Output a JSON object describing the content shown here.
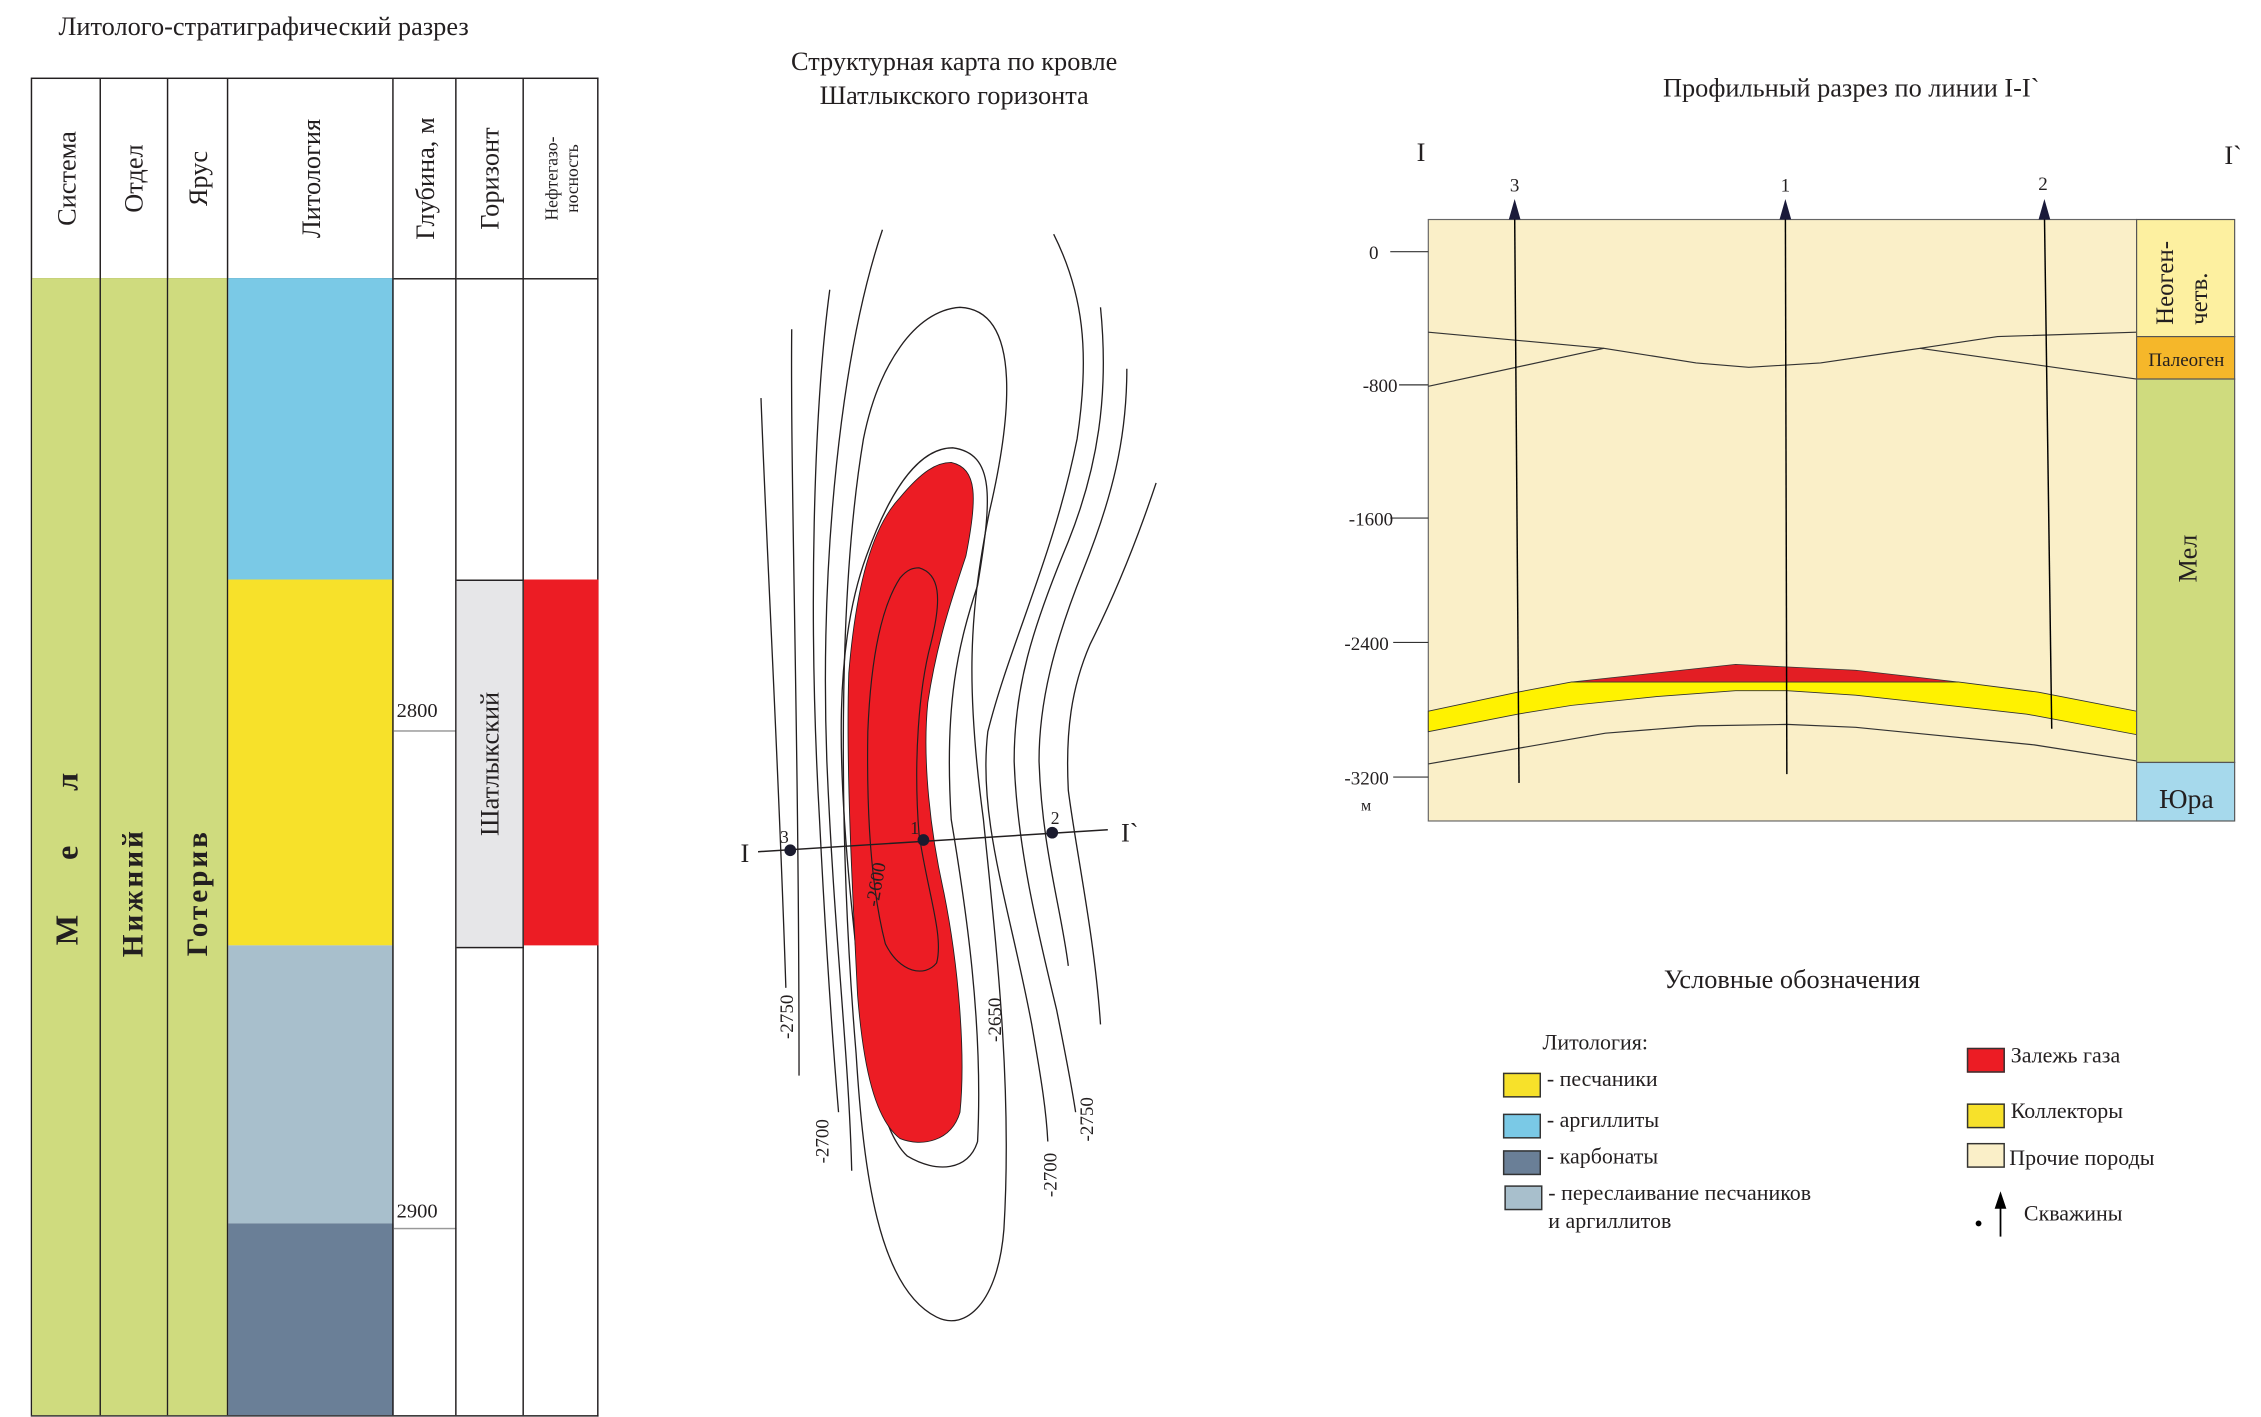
{
  "strat": {
    "title": "Литолого-стратиграфический разрез",
    "headers": [
      "Система",
      "Отдел",
      "Ярус",
      "Литология",
      "Глубина, м",
      "Горизонт",
      "Нефтегазо-",
      "носность"
    ],
    "system": "М е л",
    "series": "Нижний",
    "stage": "Готерив",
    "depths": [
      "2800",
      "2900"
    ],
    "horizon": "Шатлыкский",
    "colors": {
      "green": "#cfdb7e",
      "blue": "#7ac9e6",
      "yellow": "#f7e12a",
      "interbed": "#a8bfcc",
      "carbonate": "#6a7f97",
      "gas": "#ec1c24",
      "horizon_fill": "#e6e6e8"
    }
  },
  "map": {
    "title_line1": "Структурная карта по кровле",
    "title_line2": "Шатлыкского горизонта",
    "line_start": "I",
    "line_end": "I`",
    "wells": [
      "3",
      "1",
      "2"
    ],
    "contours": [
      "-2750",
      "-2700",
      "-2600",
      "-2650",
      "-2700",
      "-2750"
    ]
  },
  "profile": {
    "title": "Профильный разрез по линии I-I`",
    "line_start": "I",
    "line_end": "I`",
    "wells": [
      "3",
      "1",
      "2"
    ],
    "axis_ticks": [
      "0",
      "-800",
      "-1600",
      "-2400",
      "-3200"
    ],
    "axis_unit": "м",
    "column": [
      "Неоген-",
      "четв.",
      "Палеоген",
      "Мел",
      "Юра"
    ],
    "colors": {
      "other": "#faefc8",
      "neogene": "#fdf0a0",
      "paleogene": "#f5b72a",
      "cretaceous": "#cfdb7e",
      "jurassic": "#a6d9ec",
      "reservoir": "#fff200",
      "gas": "#e31e24"
    }
  },
  "legend": {
    "title": "Условные обозначения",
    "lithology_label": "Литология:",
    "lithology": [
      {
        "label": "- песчаники",
        "color": "#f7e12a"
      },
      {
        "label": "- аргиллиты",
        "color": "#7ac9e6"
      },
      {
        "label": "- карбонаты",
        "color": "#6a7f97"
      },
      {
        "label": "- переслаивание песчаников",
        "color": "#a8bfcc"
      }
    ],
    "lithology_cont": "и аргиллитов",
    "other": [
      {
        "label": "Залежь газа",
        "color": "#ec1c24"
      },
      {
        "label": "Коллекторы",
        "color": "#f7e12a"
      },
      {
        "label": "Прочие породы",
        "color": "#faefc8"
      }
    ],
    "wells_label": "Скважины"
  }
}
